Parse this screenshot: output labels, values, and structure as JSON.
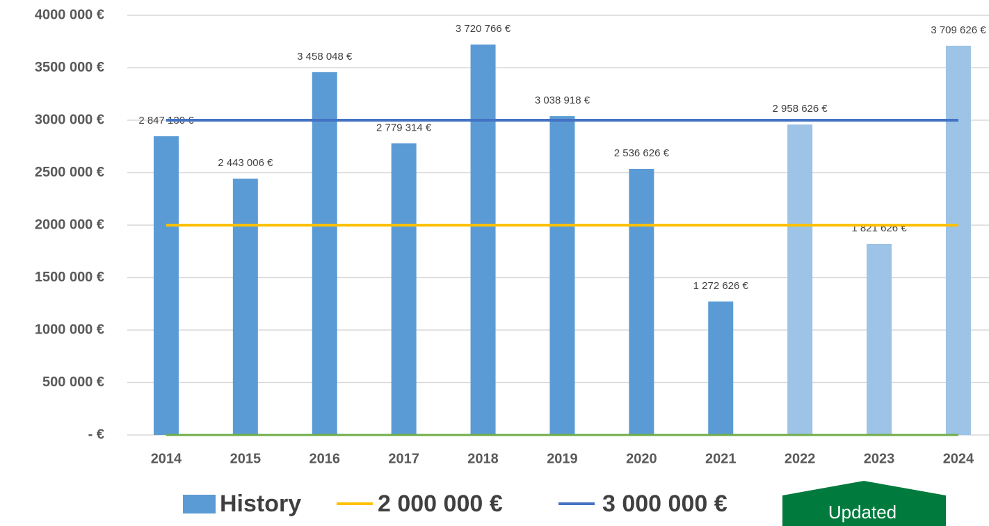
{
  "chart_data": {
    "type": "bar",
    "categories": [
      "2014",
      "2015",
      "2016",
      "2017",
      "2018",
      "2019",
      "2020",
      "2021",
      "2022",
      "2023",
      "2024"
    ],
    "series": [
      {
        "name": "History",
        "color": "#5b9bd5",
        "colors": [
          "#5b9bd5",
          "#5b9bd5",
          "#5b9bd5",
          "#5b9bd5",
          "#5b9bd5",
          "#5b9bd5",
          "#5b9bd5",
          "#5b9bd5",
          "#9dc3e6",
          "#9dc3e6",
          "#9dc3e6"
        ],
        "values": [
          2847130,
          2443006,
          3458048,
          2779314,
          3720766,
          3038918,
          2536626,
          1272626,
          2958626,
          1821626,
          3709626
        ],
        "value_labels": [
          "2 847 130 €",
          "2 443 006 €",
          "3 458 048 €",
          "2 779 314 €",
          "3 720 766 €",
          "3 038 918 €",
          "2 536 626 €",
          "1 272 626 €",
          "2 958 626 €",
          "1 821 626 €",
          "3 709 626 €"
        ]
      }
    ],
    "reference_lines": [
      {
        "name": "2 000 000 €",
        "color": "#ffc000",
        "value": 2000000
      },
      {
        "name": "3 000 000 €",
        "color": "#4472c4",
        "value": 3000000
      }
    ],
    "axis_line_color": "#70ad47",
    "ylim": [
      0,
      4000000
    ],
    "yticks": [
      {
        "value": 0,
        "label": "-  €"
      },
      {
        "value": 500000,
        "label": "500 000 €"
      },
      {
        "value": 1000000,
        "label": "1000 000 €"
      },
      {
        "value": 1500000,
        "label": "1500 000 €"
      },
      {
        "value": 2000000,
        "label": "2000 000 €"
      },
      {
        "value": 2500000,
        "label": "2500 000 €"
      },
      {
        "value": 3000000,
        "label": "3000 000 €"
      },
      {
        "value": 3500000,
        "label": "3500 000 €"
      },
      {
        "value": 4000000,
        "label": "4000 000 €"
      }
    ],
    "grid": true,
    "annotation": "Updated"
  }
}
